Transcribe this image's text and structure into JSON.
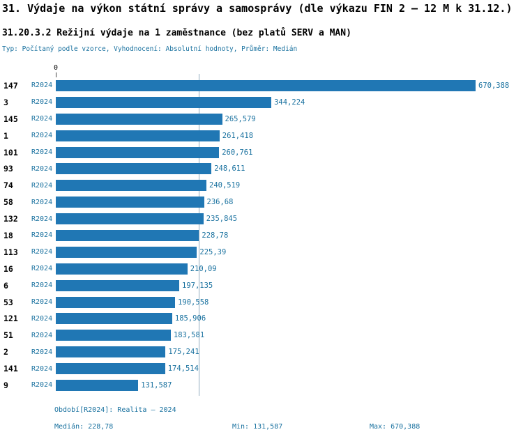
{
  "header": {
    "title": "31. Výdaje na výkon státní správy a samosprávy (dle výkazu FIN 2 – 12 M k 31.12.)",
    "subtitle": "31.20.3.2 Režijní výdaje na 1 zaměstnance (bez platů SERV a MAN)",
    "meta": "Typ: Počítaný podle vzorce, Vyhodnocení: Absolutní hodnoty, Průměr: Medián"
  },
  "colors": {
    "bar": "#2077B4",
    "accent": "#19719F",
    "medline": "#8FA9BD"
  },
  "chart_data": {
    "type": "bar",
    "orientation": "horizontal",
    "title": "31.20.3.2 Režijní výdaje na 1 zaměstnance (bez platů SERV a MAN)",
    "axis_zero_label": "0",
    "x_max": 670.388,
    "median_value": 228.78,
    "series_period": "R2024",
    "rows": [
      {
        "id": "147",
        "period": "R2024",
        "value": 670.388,
        "value_label": "670,388"
      },
      {
        "id": "3",
        "period": "R2024",
        "value": 344.224,
        "value_label": "344,224"
      },
      {
        "id": "145",
        "period": "R2024",
        "value": 265.579,
        "value_label": "265,579"
      },
      {
        "id": "1",
        "period": "R2024",
        "value": 261.418,
        "value_label": "261,418"
      },
      {
        "id": "101",
        "period": "R2024",
        "value": 260.761,
        "value_label": "260,761"
      },
      {
        "id": "93",
        "period": "R2024",
        "value": 248.611,
        "value_label": "248,611"
      },
      {
        "id": "74",
        "period": "R2024",
        "value": 240.519,
        "value_label": "240,519"
      },
      {
        "id": "58",
        "period": "R2024",
        "value": 236.68,
        "value_label": "236,68"
      },
      {
        "id": "132",
        "period": "R2024",
        "value": 235.845,
        "value_label": "235,845"
      },
      {
        "id": "18",
        "period": "R2024",
        "value": 228.78,
        "value_label": "228,78"
      },
      {
        "id": "113",
        "period": "R2024",
        "value": 225.39,
        "value_label": "225,39"
      },
      {
        "id": "16",
        "period": "R2024",
        "value": 210.09,
        "value_label": "210,09"
      },
      {
        "id": "6",
        "period": "R2024",
        "value": 197.135,
        "value_label": "197,135"
      },
      {
        "id": "53",
        "period": "R2024",
        "value": 190.558,
        "value_label": "190,558"
      },
      {
        "id": "121",
        "period": "R2024",
        "value": 185.906,
        "value_label": "185,906"
      },
      {
        "id": "51",
        "period": "R2024",
        "value": 183.581,
        "value_label": "183,581"
      },
      {
        "id": "2",
        "period": "R2024",
        "value": 175.241,
        "value_label": "175,241"
      },
      {
        "id": "141",
        "period": "R2024",
        "value": 174.514,
        "value_label": "174,514"
      },
      {
        "id": "9",
        "period": "R2024",
        "value": 131.587,
        "value_label": "131,587"
      }
    ]
  },
  "footer": {
    "period_line": "Období[R2024]: Realita – 2024",
    "median": "Medián: 228,78",
    "min": "Min: 131,587",
    "max": "Max: 670,388"
  }
}
